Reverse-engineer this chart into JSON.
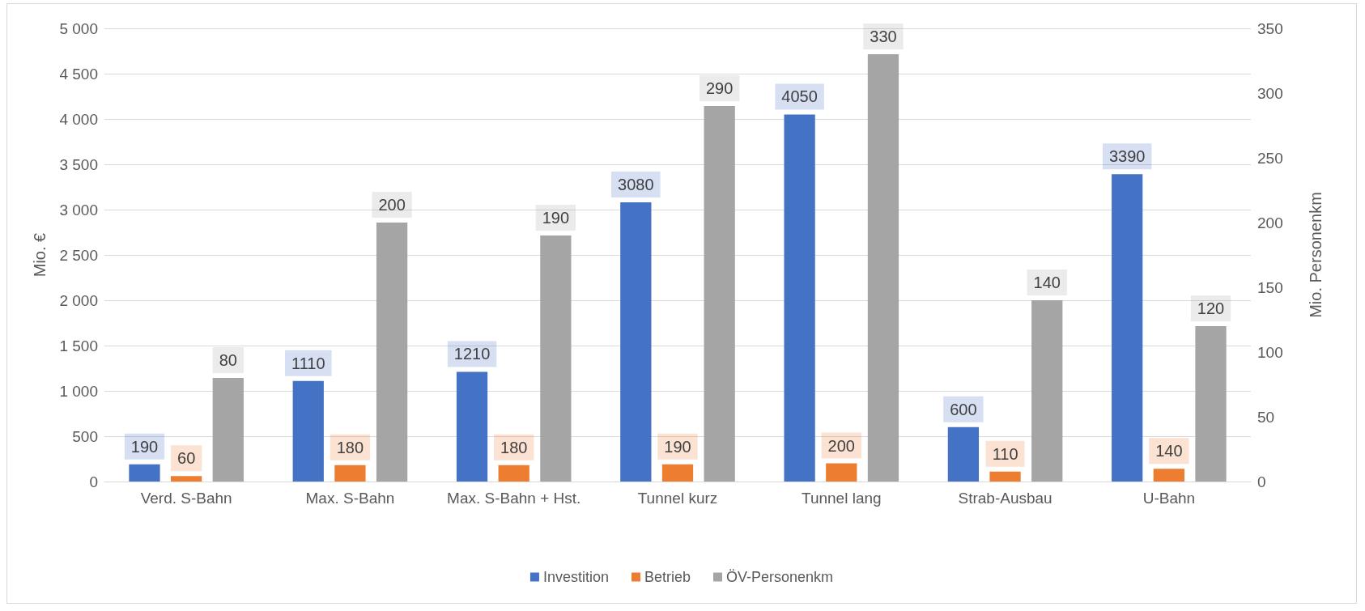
{
  "chart_data": {
    "type": "bar",
    "categories": [
      "Verd. S-Bahn",
      "Max. S-Bahn",
      "Max. S-Bahn + Hst.",
      "Tunnel kurz",
      "Tunnel lang",
      "Strab-Ausbau",
      "U-Bahn"
    ],
    "series": [
      {
        "name": "Investition",
        "color": "#4472c4",
        "values": [
          190,
          1110,
          1210,
          3080,
          4050,
          600,
          3390
        ]
      },
      {
        "name": "Betrieb",
        "color": "#ed7d31",
        "values": [
          60,
          180,
          180,
          190,
          200,
          110,
          140
        ]
      },
      {
        "name": "ÖV-Personenkm",
        "color": "#a5a5a5",
        "axis": "y2",
        "values": [
          80,
          200,
          190,
          290,
          330,
          140,
          120
        ]
      }
    ],
    "ylabel": "Mio. €",
    "y2label": "Mio. Personenkm",
    "ylim": [
      0,
      5000
    ],
    "yticks": [
      0,
      500,
      {
        "value": 1000,
        "label": "1 000"
      },
      {
        "value": 1500,
        "label": "1 500"
      },
      {
        "value": 2000,
        "label": "2 000"
      },
      {
        "value": 2500,
        "label": "2 500"
      },
      {
        "value": 3000,
        "label": "3 000"
      },
      {
        "value": 3500,
        "label": "3 500"
      },
      {
        "value": 4000,
        "label": "4 000"
      },
      {
        "value": 4500,
        "label": "4 500"
      },
      {
        "value": 5000,
        "label": "5 000"
      }
    ],
    "y2lim": [
      0,
      350
    ],
    "y2ticks": [
      0,
      50,
      100,
      150,
      200,
      250,
      300,
      350
    ],
    "grid": "y",
    "legend": "bottom",
    "data_labels": true
  }
}
